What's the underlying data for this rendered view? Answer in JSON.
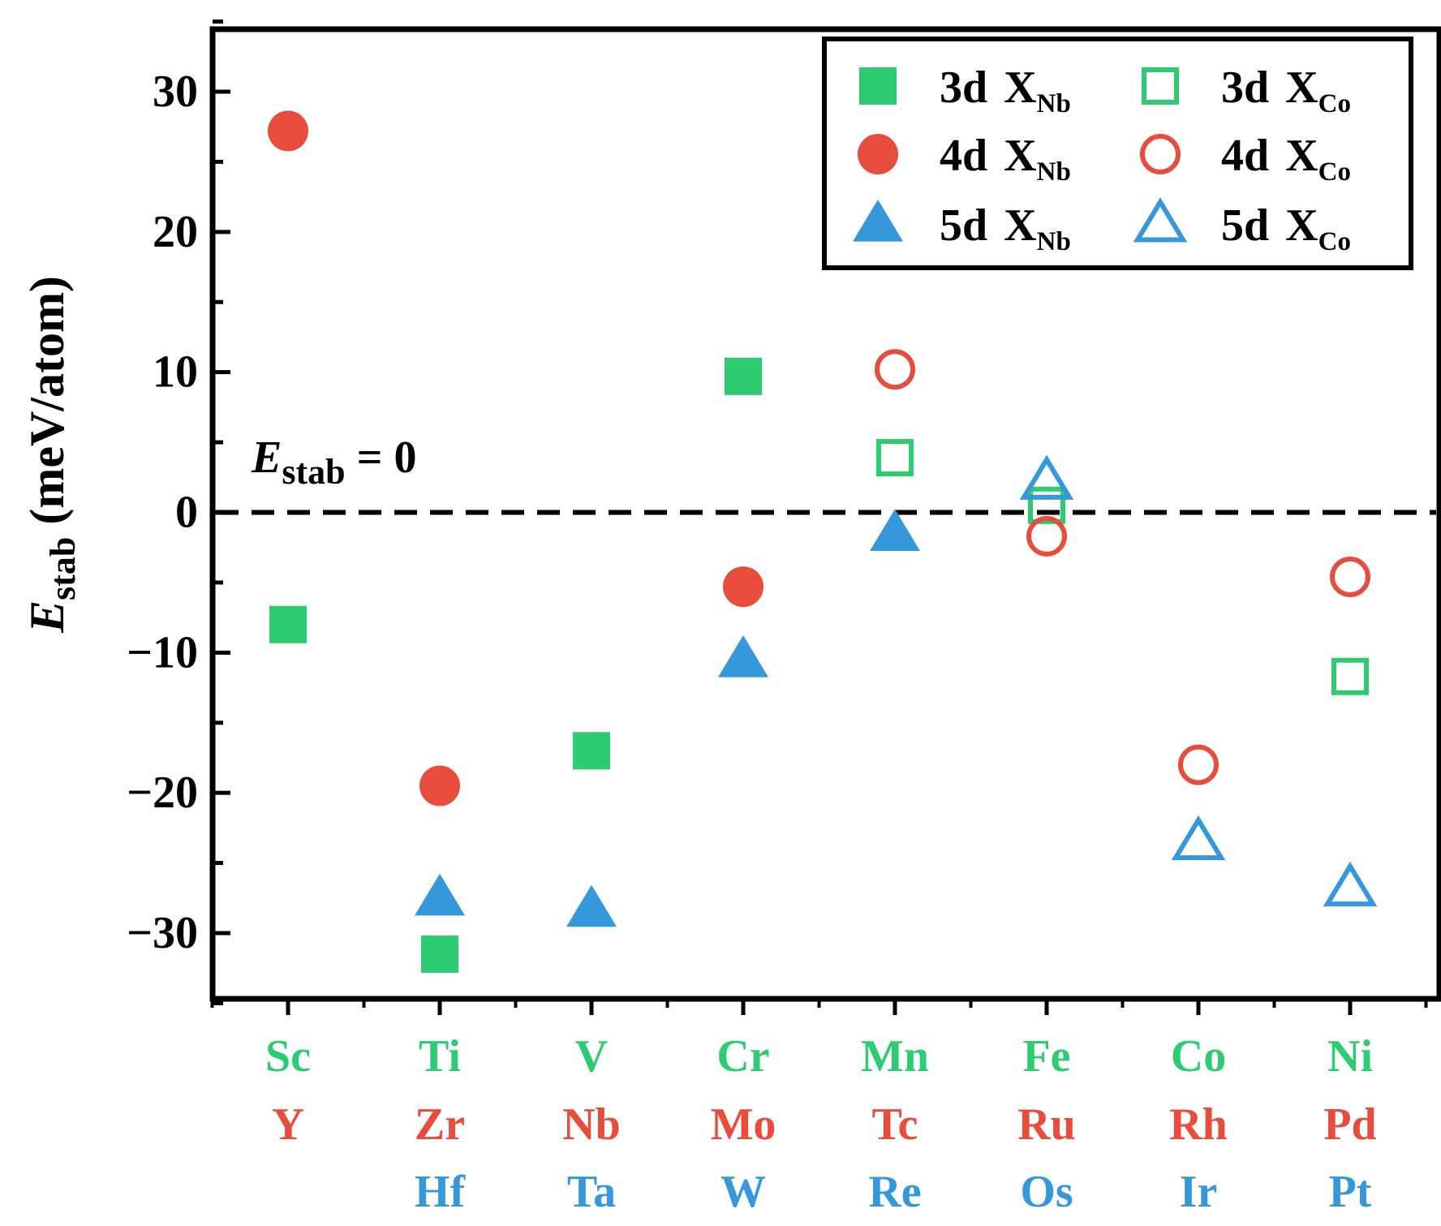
{
  "chart_data": {
    "type": "scatter",
    "ylabel_main": "E",
    "ylabel_sub": "stab",
    "ylabel_unit": " (meV/atom)",
    "ylim": [
      -35,
      35
    ],
    "yticks": [
      -30,
      -20,
      -10,
      0,
      10,
      20,
      30
    ],
    "ytick_labels": [
      "−30",
      "−20",
      "−10",
      "0",
      "10",
      "20",
      "30"
    ],
    "reference_line": {
      "y": 0,
      "style": "dashed"
    },
    "annotation": {
      "main": "E",
      "sub": "stab",
      "rest": " = 0"
    },
    "category_rows": [
      {
        "row": "3d",
        "color": "#2ecc71",
        "labels": [
          "Sc",
          "Ti",
          "V",
          "Cr",
          "Mn",
          "Fe",
          "Co",
          "Ni"
        ]
      },
      {
        "row": "4d",
        "color": "#e74c3c",
        "labels": [
          "Y",
          "Zr",
          "Nb",
          "Mo",
          "Tc",
          "Ru",
          "Rh",
          "Pd"
        ]
      },
      {
        "row": "5d",
        "color": "#3498db",
        "labels": [
          "Hf",
          "Ta",
          "W",
          "Re",
          "Os",
          "Ir",
          "Pt"
        ]
      }
    ],
    "category_row_alignment": [
      [
        0,
        1,
        2,
        3,
        4,
        5,
        6,
        7
      ],
      [
        0,
        1,
        2,
        3,
        4,
        5,
        6,
        7
      ],
      [
        1,
        2,
        3,
        4,
        5,
        6,
        7
      ]
    ],
    "series": [
      {
        "name": "3d X_Nb",
        "row": "3d",
        "site": "Nb",
        "marker": "square",
        "filled": true,
        "color": "#2ecc71",
        "x": [
          0,
          1,
          2,
          3
        ],
        "y": [
          -8,
          -31.5,
          -17,
          9.7
        ]
      },
      {
        "name": "4d X_Nb",
        "row": "4d",
        "site": "Nb",
        "marker": "circle",
        "filled": true,
        "color": "#e74c3c",
        "x": [
          0,
          1,
          3
        ],
        "y": [
          27.2,
          -19.5,
          -5.3
        ]
      },
      {
        "name": "5d X_Nb",
        "row": "5d",
        "site": "Nb",
        "marker": "triangle",
        "filled": true,
        "color": "#3498db",
        "x": [
          1,
          2,
          3,
          4
        ],
        "y": [
          -27.5,
          -28.3,
          -10.5,
          -1.5
        ]
      },
      {
        "name": "3d X_Co",
        "row": "3d",
        "site": "Co",
        "marker": "square",
        "filled": false,
        "color": "#2ecc71",
        "x": [
          4,
          5,
          7
        ],
        "y": [
          3.9,
          0.5,
          -11.7
        ]
      },
      {
        "name": "4d X_Co",
        "row": "4d",
        "site": "Co",
        "marker": "circle",
        "filled": false,
        "color": "#e74c3c",
        "x": [
          4,
          5,
          6,
          7
        ],
        "y": [
          10.2,
          -1.7,
          -18,
          -4.6
        ]
      },
      {
        "name": "5d X_Co",
        "row": "5d",
        "site": "Co",
        "marker": "triangle",
        "filled": false,
        "color": "#3498db",
        "x": [
          5,
          6,
          7
        ],
        "y": [
          2.2,
          -23.5,
          -26.8
        ]
      }
    ],
    "legend": {
      "position": "top-right",
      "items": [
        {
          "series": 0,
          "row": "3d",
          "main": "X",
          "sub": "Nb"
        },
        {
          "series": 3,
          "row": "3d",
          "main": "X",
          "sub": "Co"
        },
        {
          "series": 1,
          "row": "4d",
          "main": "X",
          "sub": "Nb"
        },
        {
          "series": 4,
          "row": "4d",
          "main": "X",
          "sub": "Co"
        },
        {
          "series": 2,
          "row": "5d",
          "main": "X",
          "sub": "Nb"
        },
        {
          "series": 5,
          "row": "5d",
          "main": "X",
          "sub": "Co"
        }
      ]
    }
  }
}
